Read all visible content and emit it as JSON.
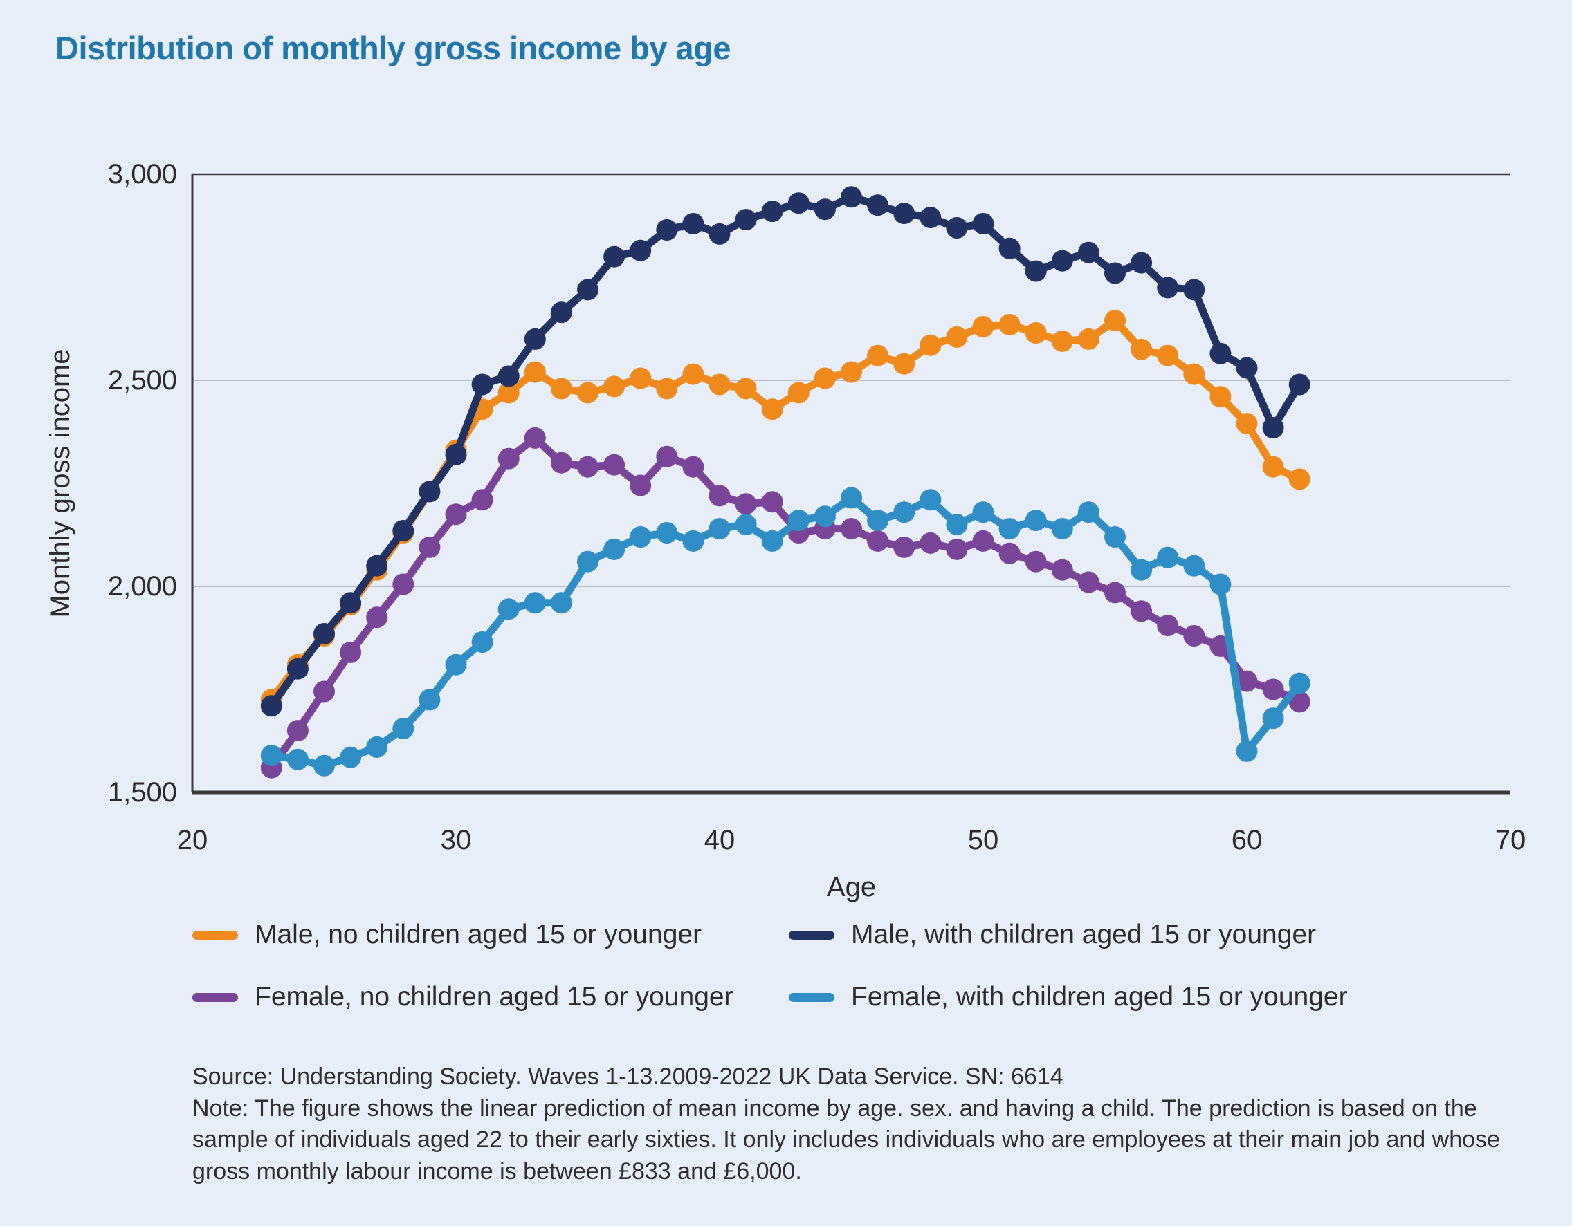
{
  "page": {
    "title": "Distribution of monthly gross income by age"
  },
  "chart_data": {
    "type": "line",
    "title": "Distribution of monthly gross income by age",
    "xlabel": "Age",
    "ylabel": "Monthly gross income",
    "xlim": [
      20,
      70
    ],
    "ylim": [
      1500,
      3000
    ],
    "grid": "horizontal",
    "legend_position": "bottom",
    "x_ticks": [
      20,
      30,
      40,
      50,
      60,
      70
    ],
    "y_ticks": [
      {
        "value": 3000,
        "label": "3,000"
      },
      {
        "value": 2500,
        "label": "2,500"
      },
      {
        "value": 2000,
        "label": "2,000"
      },
      {
        "value": 1500,
        "label": "1,500"
      }
    ],
    "x": [
      23,
      24,
      25,
      26,
      27,
      28,
      29,
      30,
      31,
      32,
      33,
      34,
      35,
      36,
      37,
      38,
      39,
      40,
      41,
      42,
      43,
      44,
      45,
      46,
      47,
      48,
      49,
      50,
      51,
      52,
      53,
      54,
      55,
      56,
      57,
      58,
      59,
      60,
      61,
      62
    ],
    "series": [
      {
        "name": "Male, no children aged 15 or younger",
        "color": "#f08a1d",
        "values": [
          1725,
          1810,
          1880,
          1955,
          2040,
          2130,
          2230,
          2330,
          2430,
          2470,
          2520,
          2480,
          2470,
          2485,
          2505,
          2480,
          2515,
          2490,
          2480,
          2430,
          2470,
          2505,
          2520,
          2560,
          2540,
          2585,
          2605,
          2630,
          2635,
          2615,
          2595,
          2600,
          2645,
          2575,
          2560,
          2515,
          2460,
          2395,
          2290,
          2260
        ]
      },
      {
        "name": "Female, no children aged 15 or younger",
        "color": "#7a4499",
        "values": [
          1560,
          1650,
          1745,
          1840,
          1925,
          2005,
          2095,
          2175,
          2210,
          2310,
          2360,
          2300,
          2290,
          2295,
          2245,
          2315,
          2290,
          2220,
          2200,
          2205,
          2130,
          2140,
          2140,
          2110,
          2095,
          2105,
          2090,
          2110,
          2080,
          2060,
          2040,
          2010,
          1985,
          1940,
          1905,
          1880,
          1855,
          1770,
          1750,
          1720
        ]
      },
      {
        "name": "Female, with children aged 15 or younger",
        "color": "#2e8ec5",
        "values": [
          1590,
          1580,
          1565,
          1585,
          1610,
          1655,
          1725,
          1810,
          1865,
          1945,
          1960,
          1960,
          2060,
          2090,
          2120,
          2130,
          2110,
          2140,
          2150,
          2110,
          2160,
          2170,
          2215,
          2160,
          2180,
          2210,
          2150,
          2180,
          2140,
          2160,
          2140,
          2180,
          2120,
          2040,
          2070,
          2050,
          2005,
          1600,
          1680,
          1765
        ]
      },
      {
        "name": "Male, with children aged 15 or younger",
        "color": "#223263",
        "values": [
          1710,
          1800,
          1885,
          1960,
          2050,
          2135,
          2230,
          2320,
          2490,
          2510,
          2600,
          2665,
          2720,
          2800,
          2815,
          2865,
          2880,
          2855,
          2890,
          2910,
          2930,
          2915,
          2945,
          2925,
          2905,
          2895,
          2870,
          2880,
          2820,
          2765,
          2790,
          2810,
          2760,
          2785,
          2725,
          2720,
          2565,
          2530,
          2385,
          2490
        ]
      }
    ]
  },
  "legend": {
    "items": [
      {
        "label": "Male, no children aged 15 or younger",
        "color": "#f08a1d"
      },
      {
        "label": "Male, with children aged 15 or younger",
        "color": "#223263"
      },
      {
        "label": "Female, no children aged 15 or younger",
        "color": "#7a4499"
      },
      {
        "label": "Female, with children aged 15 or younger",
        "color": "#2e8ec5"
      }
    ]
  },
  "footer": {
    "source": "Source: Understanding Society. Waves 1-13.2009-2022 UK Data Service. SN: 6614",
    "note": "Note: The figure shows the linear prediction of mean income by age. sex. and having a child. The prediction is based on the sample of individuals aged 22 to their early sixties. It only includes individuals who are employees at their main job and whose gross monthly labour income is between £833 and £6,000."
  },
  "colors": {
    "background": "#e8eef7",
    "title": "#2077ab",
    "gridline": "#b7bcc6",
    "axis": "#3a3a3a",
    "text": "#2b2b2b"
  }
}
